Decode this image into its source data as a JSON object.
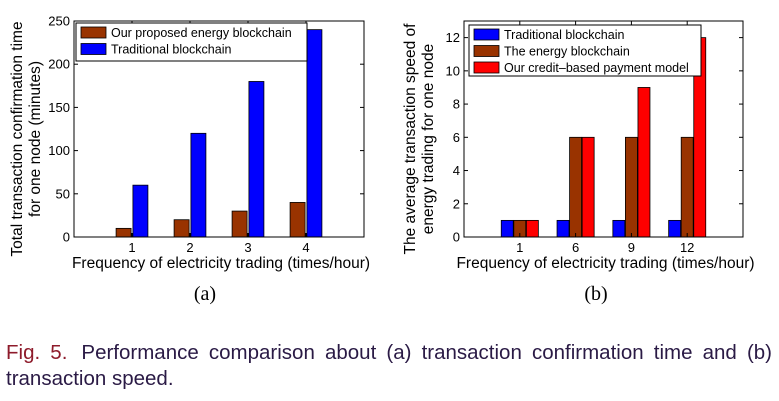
{
  "chart_data": [
    {
      "type": "bar",
      "panel_label": "(a)",
      "categories": [
        "1",
        "2",
        "3",
        "4"
      ],
      "xlabel": "Frequency of electricity trading (times/hour)",
      "ylabel": [
        "Total transaction confirmation time",
        "for one node (minutes)"
      ],
      "ylim": [
        0,
        250
      ],
      "yticks": [
        0,
        50,
        100,
        150,
        200,
        250
      ],
      "grid": false,
      "legend_position": "top-left",
      "series": [
        {
          "name": "Our proposed energy blockchain",
          "color": "#993300",
          "values": [
            10,
            20,
            30,
            40
          ]
        },
        {
          "name": "Traditional blockchain",
          "color": "#0000ff",
          "values": [
            60,
            120,
            180,
            240
          ]
        }
      ]
    },
    {
      "type": "bar",
      "panel_label": "(b)",
      "categories": [
        "1",
        "6",
        "9",
        "12"
      ],
      "xlabel": "Frequency of electricity trading (times/hour)",
      "ylabel": [
        "The average transaction speed of",
        "energy  trading for one node"
      ],
      "ylim": [
        0,
        13
      ],
      "yticks": [
        0,
        2,
        4,
        6,
        8,
        10,
        12
      ],
      "grid": false,
      "legend_position": "top-left",
      "series": [
        {
          "name": "Traditional blockchain",
          "color": "#0000ff",
          "values": [
            1,
            1,
            1,
            1
          ]
        },
        {
          "name": "The energy blockchain",
          "color": "#993300",
          "values": [
            1,
            6,
            6,
            6
          ]
        },
        {
          "name": "Our credit–based payment model",
          "color": "#ff0000",
          "values": [
            1,
            6,
            9,
            12
          ]
        }
      ]
    }
  ],
  "caption": {
    "label": "Fig. 5.",
    "text": "Performance comparison about (a) transaction confirmation time and (b) transaction speed."
  }
}
